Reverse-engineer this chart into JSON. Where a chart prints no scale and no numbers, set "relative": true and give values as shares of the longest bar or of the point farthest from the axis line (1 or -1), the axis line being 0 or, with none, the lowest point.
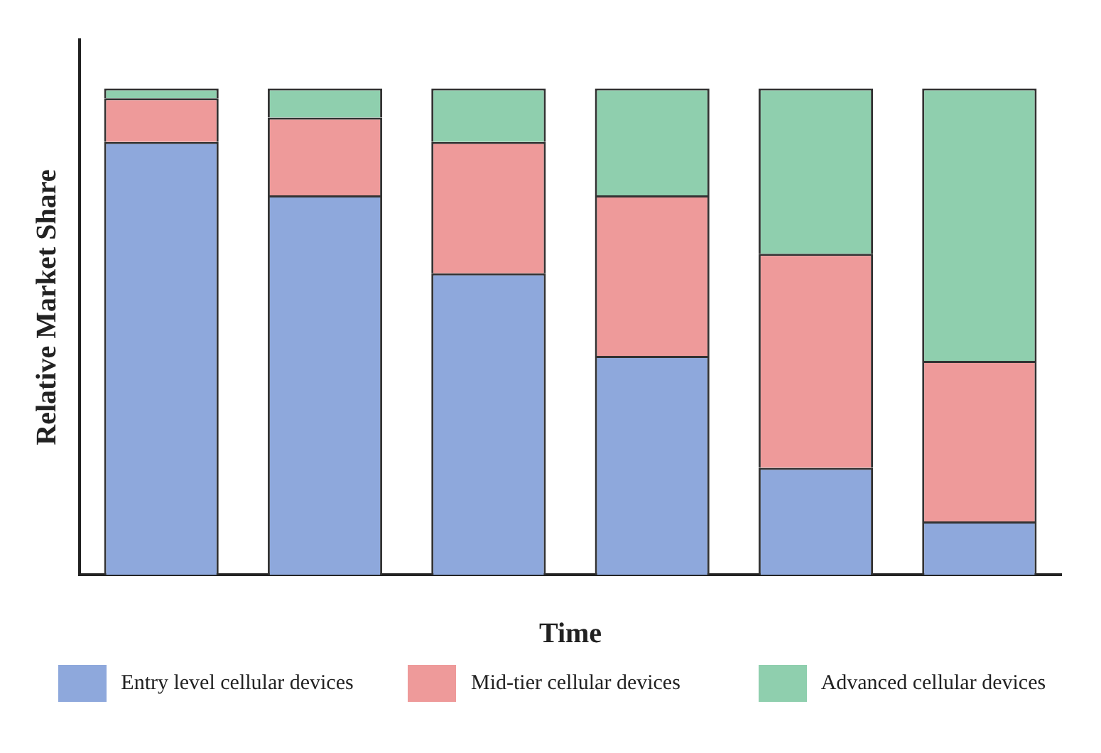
{
  "chart_data": {
    "type": "bar",
    "stacked": true,
    "relative": true,
    "xlabel": "Time",
    "ylabel": "Relative Market Share",
    "categories": [
      null,
      null,
      null,
      null,
      null,
      null
    ],
    "series": [
      {
        "name": "Entry level cellular devices",
        "color": "#8ea8dc",
        "values": [
          0.89,
          0.78,
          0.62,
          0.45,
          0.22,
          0.11
        ]
      },
      {
        "name": "Mid-tier cellular devices",
        "color": "#ee9a9a",
        "values": [
          0.09,
          0.16,
          0.27,
          0.33,
          0.44,
          0.33
        ]
      },
      {
        "name": "Advanced cellular devices",
        "color": "#8fcfae",
        "values": [
          0.02,
          0.06,
          0.11,
          0.22,
          0.34,
          0.56
        ]
      }
    ],
    "grid": false,
    "legend": "bottom"
  }
}
